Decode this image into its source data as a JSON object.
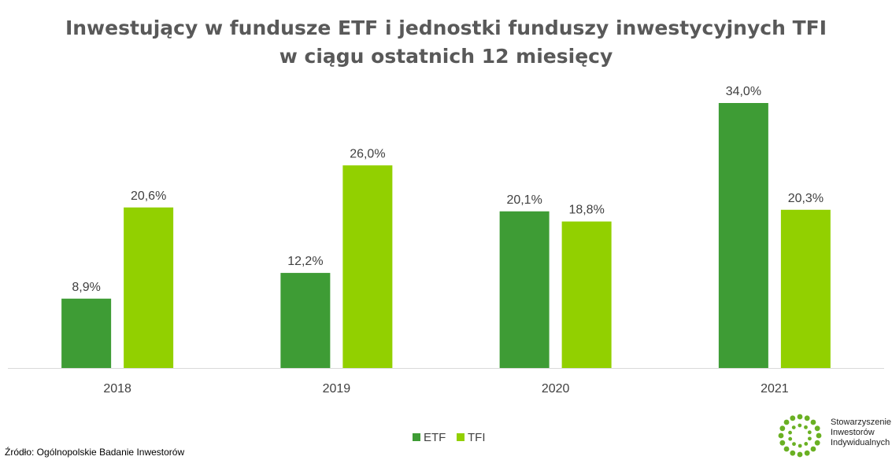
{
  "title_line1": "Inwestujący w fundusze ETF i jednostki funduszy inwestycyjnych TFI",
  "title_line2": "w ciągu ostatnich 12 miesięcy",
  "source": "Źródło: Ogólnopolskie  Badanie Inwestorów",
  "logo": {
    "line1": "Stowarzyszenie",
    "line2": "Inwestorów",
    "line3": "Indywidualnych"
  },
  "colors": {
    "etf": "#3e9c35",
    "tfi": "#92d000",
    "axis": "#d9d9d9",
    "logo": "#6ab023"
  },
  "chart_data": {
    "type": "bar",
    "categories": [
      "2018",
      "2019",
      "2020",
      "2021"
    ],
    "series": [
      {
        "name": "ETF",
        "values": [
          8.9,
          12.2,
          20.1,
          34.0
        ],
        "labels": [
          "8,9%",
          "12,2%",
          "20,1%",
          "34,0%"
        ]
      },
      {
        "name": "TFI",
        "values": [
          20.6,
          26.0,
          18.8,
          20.3
        ],
        "labels": [
          "20,6%",
          "26,0%",
          "18,8%",
          "20,3%"
        ]
      }
    ],
    "ylim": [
      0,
      34.0
    ],
    "legend": "bottom",
    "grid": false
  }
}
